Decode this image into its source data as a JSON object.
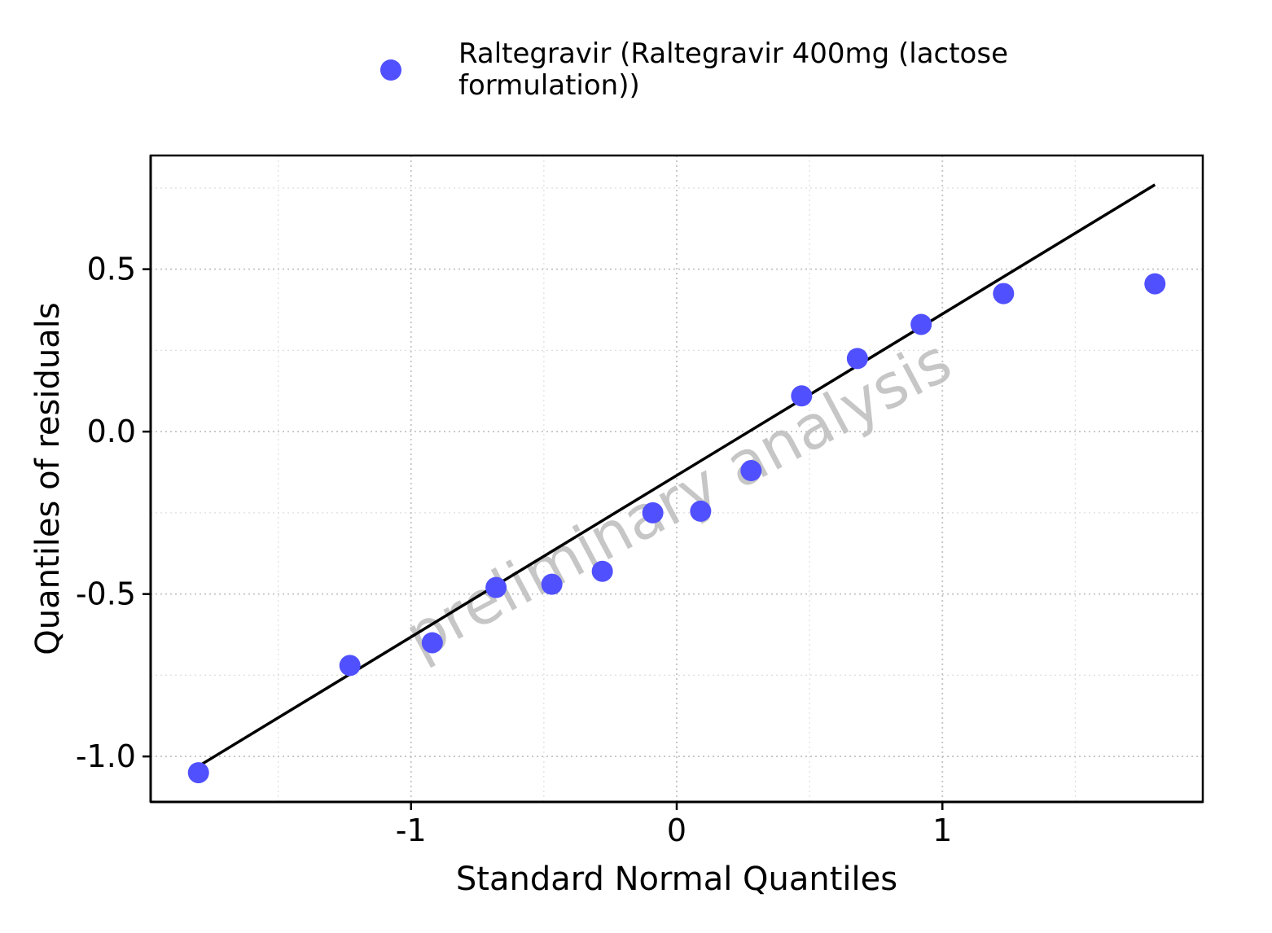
{
  "chart_data": {
    "type": "scatter",
    "title": "",
    "xlabel": "Standard Normal Quantiles",
    "ylabel": "Quantiles of residuals",
    "xlim": [
      -1.98,
      1.98
    ],
    "ylim": [
      -1.14,
      0.85
    ],
    "x_ticks": [
      -1,
      0,
      1
    ],
    "x_tick_labels": [
      "-1",
      "0",
      "1"
    ],
    "y_ticks": [
      -1.0,
      -0.5,
      0.0,
      0.5
    ],
    "y_tick_labels": [
      "-1.0",
      "-0.5",
      "0.0",
      "0.5"
    ],
    "grid": true,
    "legend_position": "top",
    "legend_lines": [
      "Raltegravir (Raltegravir 400mg (lactose",
      "formulation))"
    ],
    "watermark": "preliminary analysis",
    "series": [
      {
        "name": "Raltegravir (Raltegravir 400mg (lactose formulation))",
        "color": "#5050ff",
        "x": [
          -1.8,
          -1.23,
          -0.92,
          -0.68,
          -0.47,
          -0.28,
          -0.09,
          0.09,
          0.28,
          0.47,
          0.68,
          0.92,
          1.23,
          1.8
        ],
        "y": [
          -1.05,
          -0.72,
          -0.65,
          -0.48,
          -0.47,
          -0.43,
          -0.25,
          -0.245,
          -0.12,
          0.11,
          0.225,
          0.33,
          0.425,
          0.455
        ]
      }
    ],
    "reference_line": {
      "x": [
        -1.8,
        1.8
      ],
      "y": [
        -1.03,
        0.76
      ],
      "color": "#000000"
    }
  }
}
